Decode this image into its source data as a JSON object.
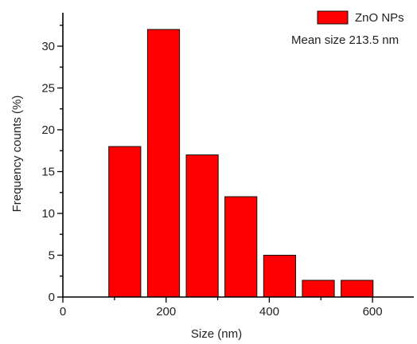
{
  "chart_data": {
    "type": "bar",
    "x": [
      120,
      195,
      270,
      345,
      420,
      495,
      570
    ],
    "bin_width": 62,
    "series": [
      {
        "name": "ZnO NPs",
        "values": [
          18,
          32,
          17,
          12,
          5,
          2,
          2
        ],
        "color": "#ff0000"
      }
    ],
    "xlabel": "Size (nm)",
    "ylabel": "Frequency counts (%)",
    "xlim": [
      0,
      680
    ],
    "ylim": [
      0,
      34
    ],
    "xticks": [
      "0",
      "200",
      "400",
      "600"
    ],
    "yticks": [
      "0",
      "5",
      "10",
      "15",
      "20",
      "25",
      "30"
    ],
    "annotation": "Mean size 213.5  nm",
    "legend": {
      "position": "top-right",
      "label": "ZnO NPs"
    },
    "grid": false
  }
}
